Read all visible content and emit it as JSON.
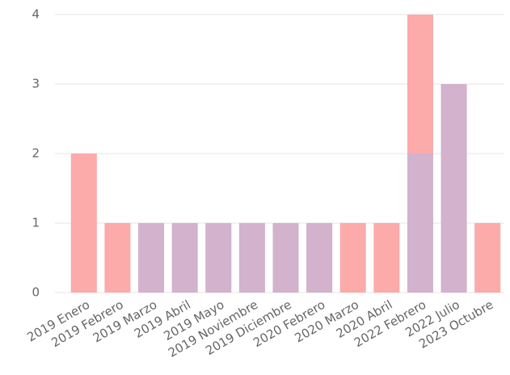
{
  "chart_data": {
    "type": "stacked-bar",
    "categories": [
      "2019 Enero",
      "2019 Febrero",
      "2019 Marzo",
      "2019 Abril",
      "2019 Mayo",
      "2019 Noviembre",
      "2019 Diciembre",
      "2020 Febrero",
      "2020 Marzo",
      "2020 Abril",
      "2022 Febrero",
      "2022 Julio",
      "2023 Octubre"
    ],
    "series": [
      {
        "color": "#d2b2cd",
        "values": [
          0,
          0,
          1,
          1,
          1,
          1,
          1,
          1,
          0,
          0,
          2,
          3,
          0
        ]
      },
      {
        "color": "#fcaaaa",
        "values": [
          2,
          1,
          0,
          0,
          0,
          0,
          0,
          0,
          1,
          1,
          2,
          0,
          1
        ]
      }
    ],
    "ylim": [
      0,
      4
    ],
    "yticks": [
      0,
      1,
      2,
      3,
      4
    ],
    "grid": true
  }
}
